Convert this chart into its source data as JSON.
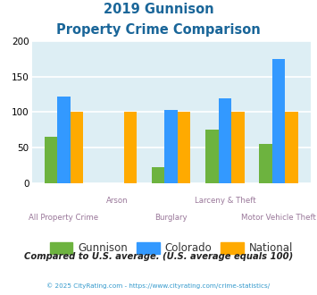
{
  "title_line1": "2019 Gunnison",
  "title_line2": "Property Crime Comparison",
  "categories": [
    "All Property Crime",
    "Arson",
    "Burglary",
    "Larceny & Theft",
    "Motor Vehicle Theft"
  ],
  "series": {
    "Gunnison": [
      65,
      0,
      22,
      75,
      55
    ],
    "Colorado": [
      122,
      0,
      103,
      120,
      175
    ],
    "National": [
      100,
      100,
      100,
      100,
      100
    ]
  },
  "colors": {
    "Gunnison": "#6db33f",
    "Colorado": "#3399ff",
    "National": "#ffaa00"
  },
  "ylim": [
    0,
    200
  ],
  "yticks": [
    0,
    50,
    100,
    150,
    200
  ],
  "plot_bg": "#ddeef4",
  "grid_color": "#ffffff",
  "footnote": "Compared to U.S. average. (U.S. average equals 100)",
  "copyright": "© 2025 CityRating.com - https://www.cityrating.com/crime-statistics/",
  "title_color": "#1a6699",
  "footnote_color": "#222222",
  "copyright_color": "#3399cc",
  "cat_label_color": "#997799",
  "legend_label_color": "#333333",
  "top_cats": [
    "Arson",
    "Larceny & Theft"
  ],
  "bottom_cats": [
    "All Property Crime",
    "Burglary",
    "Motor Vehicle Theft"
  ]
}
